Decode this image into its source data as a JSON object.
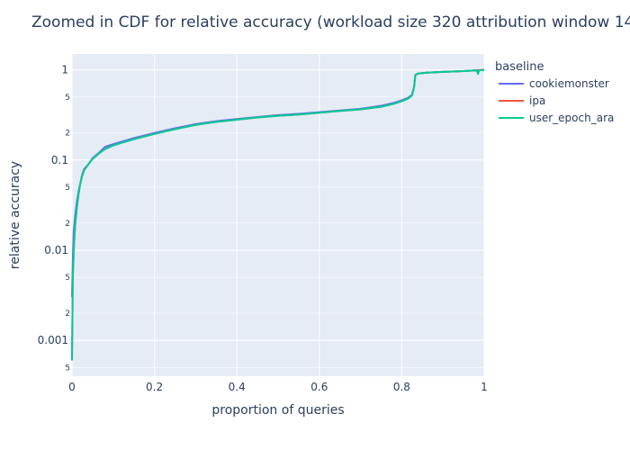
{
  "chart_data": {
    "type": "line",
    "title": "Zoomed in CDF for relative accuracy (workload size 320 attribution window 14",
    "xlabel": "proportion of queries",
    "ylabel": "relative accuracy",
    "xlim": [
      0,
      1
    ],
    "ylim": [
      0.0004,
      1.5
    ],
    "yscale": "log",
    "grid": true,
    "legend_title": "baseline",
    "legend_position": "top-right outside",
    "x_ticks": [
      {
        "value": 0,
        "label": "0"
      },
      {
        "value": 0.2,
        "label": "0.2"
      },
      {
        "value": 0.4,
        "label": "0.4"
      },
      {
        "value": 0.6,
        "label": "0.6"
      },
      {
        "value": 0.8,
        "label": "0.8"
      },
      {
        "value": 1,
        "label": "1"
      }
    ],
    "y_major_ticks": [
      {
        "value": 0.001,
        "label": "0.001"
      },
      {
        "value": 0.01,
        "label": "0.01"
      },
      {
        "value": 0.1,
        "label": "0.1"
      },
      {
        "value": 1,
        "label": "1"
      }
    ],
    "y_minor_ticks": [
      {
        "value": 0.0005,
        "label": "5"
      },
      {
        "value": 0.002,
        "label": "2"
      },
      {
        "value": 0.005,
        "label": "5"
      },
      {
        "value": 0.02,
        "label": "2"
      },
      {
        "value": 0.05,
        "label": "5"
      },
      {
        "value": 0.2,
        "label": "2"
      },
      {
        "value": 0.5,
        "label": "5"
      }
    ],
    "series": [
      {
        "name": "cookiemonster",
        "color": "#636efa",
        "points": [
          [
            0,
            0.003
          ],
          [
            0.002,
            0.008
          ],
          [
            0.004,
            0.016
          ],
          [
            0.008,
            0.025
          ],
          [
            0.012,
            0.035
          ],
          [
            0.016,
            0.045
          ],
          [
            0.02,
            0.055
          ],
          [
            0.025,
            0.07
          ],
          [
            0.03,
            0.08
          ],
          [
            0.04,
            0.09
          ],
          [
            0.05,
            0.105
          ],
          [
            0.065,
            0.12
          ],
          [
            0.08,
            0.14
          ],
          [
            0.1,
            0.15
          ],
          [
            0.12,
            0.16
          ],
          [
            0.15,
            0.175
          ],
          [
            0.2,
            0.2
          ],
          [
            0.25,
            0.225
          ],
          [
            0.3,
            0.25
          ],
          [
            0.35,
            0.27
          ],
          [
            0.4,
            0.285
          ],
          [
            0.45,
            0.3
          ],
          [
            0.5,
            0.315
          ],
          [
            0.55,
            0.325
          ],
          [
            0.6,
            0.34
          ],
          [
            0.65,
            0.355
          ],
          [
            0.7,
            0.37
          ],
          [
            0.75,
            0.4
          ],
          [
            0.78,
            0.43
          ],
          [
            0.8,
            0.46
          ],
          [
            0.815,
            0.49
          ],
          [
            0.825,
            0.53
          ],
          [
            0.83,
            0.65
          ],
          [
            0.833,
            0.88
          ],
          [
            0.84,
            0.91
          ],
          [
            0.86,
            0.93
          ],
          [
            0.9,
            0.95
          ],
          [
            0.95,
            0.97
          ],
          [
            1,
            1
          ]
        ]
      },
      {
        "name": "ipa",
        "color": "#ef553b",
        "points": [
          [
            0,
            0.0006
          ],
          [
            0.002,
            0.005
          ],
          [
            0.005,
            0.012
          ],
          [
            0.008,
            0.02
          ],
          [
            0.012,
            0.03
          ],
          [
            0.016,
            0.042
          ],
          [
            0.02,
            0.055
          ],
          [
            0.025,
            0.068
          ],
          [
            0.03,
            0.078
          ],
          [
            0.04,
            0.09
          ],
          [
            0.05,
            0.103
          ],
          [
            0.065,
            0.118
          ],
          [
            0.08,
            0.132
          ],
          [
            0.1,
            0.145
          ],
          [
            0.12,
            0.155
          ],
          [
            0.15,
            0.17
          ],
          [
            0.2,
            0.195
          ],
          [
            0.25,
            0.22
          ],
          [
            0.3,
            0.245
          ],
          [
            0.35,
            0.265
          ],
          [
            0.4,
            0.28
          ],
          [
            0.45,
            0.297
          ],
          [
            0.5,
            0.31
          ],
          [
            0.55,
            0.32
          ],
          [
            0.6,
            0.335
          ],
          [
            0.65,
            0.35
          ],
          [
            0.7,
            0.365
          ],
          [
            0.75,
            0.39
          ],
          [
            0.78,
            0.42
          ],
          [
            0.8,
            0.45
          ],
          [
            0.815,
            0.48
          ],
          [
            0.825,
            0.52
          ],
          [
            0.83,
            0.65
          ],
          [
            0.833,
            0.88
          ],
          [
            0.84,
            0.91
          ],
          [
            0.86,
            0.93
          ],
          [
            0.9,
            0.95
          ],
          [
            0.95,
            0.97
          ],
          [
            1,
            1
          ]
        ]
      },
      {
        "name": "user_epoch_ara",
        "color": "#00cc96",
        "points": [
          [
            0,
            0.0006
          ],
          [
            0.002,
            0.005
          ],
          [
            0.005,
            0.012
          ],
          [
            0.008,
            0.02
          ],
          [
            0.012,
            0.03
          ],
          [
            0.016,
            0.042
          ],
          [
            0.02,
            0.055
          ],
          [
            0.025,
            0.068
          ],
          [
            0.03,
            0.078
          ],
          [
            0.04,
            0.09
          ],
          [
            0.05,
            0.103
          ],
          [
            0.065,
            0.118
          ],
          [
            0.08,
            0.132
          ],
          [
            0.1,
            0.145
          ],
          [
            0.12,
            0.155
          ],
          [
            0.15,
            0.17
          ],
          [
            0.2,
            0.195
          ],
          [
            0.25,
            0.22
          ],
          [
            0.3,
            0.245
          ],
          [
            0.35,
            0.265
          ],
          [
            0.4,
            0.28
          ],
          [
            0.45,
            0.297
          ],
          [
            0.5,
            0.31
          ],
          [
            0.55,
            0.32
          ],
          [
            0.6,
            0.335
          ],
          [
            0.65,
            0.35
          ],
          [
            0.7,
            0.365
          ],
          [
            0.75,
            0.39
          ],
          [
            0.78,
            0.42
          ],
          [
            0.8,
            0.45
          ],
          [
            0.815,
            0.48
          ],
          [
            0.825,
            0.52
          ],
          [
            0.83,
            0.65
          ],
          [
            0.833,
            0.88
          ],
          [
            0.84,
            0.91
          ],
          [
            0.86,
            0.93
          ],
          [
            0.9,
            0.95
          ],
          [
            0.95,
            0.97
          ],
          [
            0.982,
            0.985
          ],
          [
            0.985,
            0.9
          ],
          [
            0.988,
            0.99
          ],
          [
            1,
            1
          ]
        ]
      }
    ]
  }
}
